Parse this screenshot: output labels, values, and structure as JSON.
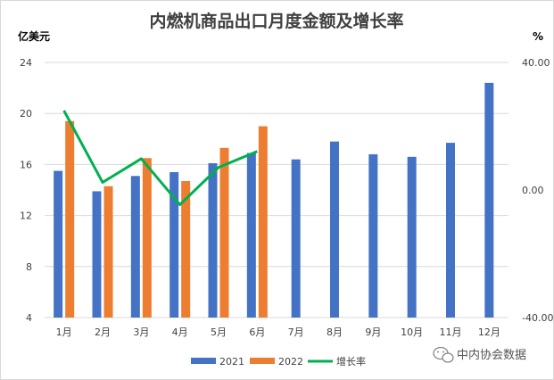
{
  "chart_data": {
    "type": "bar",
    "title": "内燃机商品出口月度金额及增长率",
    "ylabel_left": "亿美元",
    "ylabel_right": "%",
    "categories": [
      "1月",
      "2月",
      "3月",
      "4月",
      "5月",
      "6月",
      "7月",
      "8月",
      "9月",
      "10月",
      "11月",
      "12月"
    ],
    "ylim_left": [
      4,
      24
    ],
    "yticks_left": [
      "4",
      "8",
      "12",
      "16",
      "20",
      "24"
    ],
    "ylim_right": [
      -40,
      40
    ],
    "yticks_right": [
      "-40.00",
      "0.00",
      "40.00"
    ],
    "series": [
      {
        "name": "2021",
        "kind": "bar",
        "axis": "left",
        "color": "#4472c4",
        "values": [
          15.5,
          13.9,
          15.1,
          15.4,
          16.1,
          16.9,
          16.4,
          17.8,
          16.8,
          16.6,
          17.7,
          22.4
        ]
      },
      {
        "name": "2022",
        "kind": "bar",
        "axis": "left",
        "color": "#ed7d31",
        "values": [
          19.4,
          14.3,
          16.5,
          14.7,
          17.3,
          19.0,
          null,
          null,
          null,
          null,
          null,
          null
        ]
      },
      {
        "name": "增长率",
        "kind": "line",
        "axis": "right",
        "color": "#00b050",
        "values": [
          24.9,
          2.4,
          9.8,
          -4.6,
          7.1,
          12.1,
          null,
          null,
          null,
          null,
          null,
          null
        ]
      }
    ],
    "grid": true,
    "legend": "bottom"
  },
  "watermark": {
    "icon": "wechat-icon",
    "text": "中内协会数据"
  }
}
